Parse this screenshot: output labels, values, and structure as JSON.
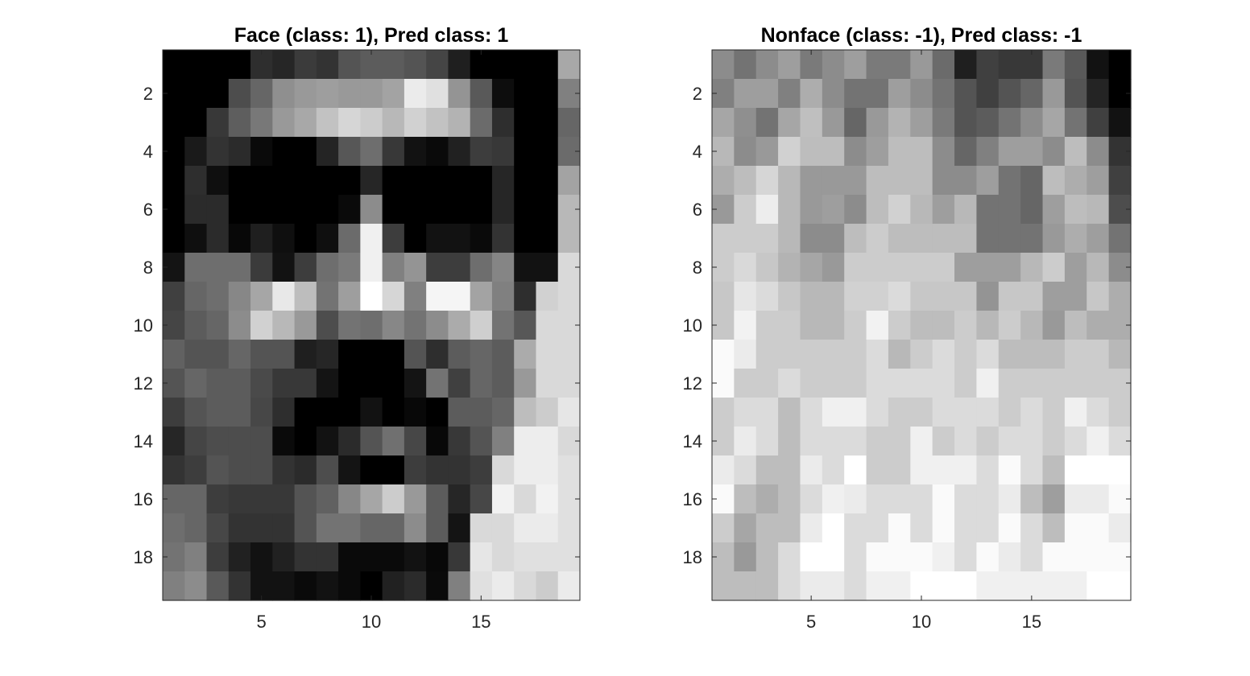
{
  "chart_data": [
    {
      "type": "heatmap",
      "title": "Face (class: 1), Pred class: 1",
      "colormap": "gray",
      "xlim": [
        0.5,
        19.5
      ],
      "ylim": [
        0.5,
        19.5
      ],
      "y_reversed": true,
      "xticks": [
        5,
        10,
        15
      ],
      "yticks": [
        2,
        4,
        6,
        8,
        10,
        12,
        14,
        16,
        18
      ],
      "rows": 19,
      "cols": 19,
      "values": [
        [
          0.0,
          0.0,
          0.0,
          0.0,
          0.18,
          0.15,
          0.23,
          0.2,
          0.33,
          0.36,
          0.36,
          0.33,
          0.27,
          0.12,
          0.0,
          0.0,
          0.0,
          0.0,
          0.66
        ],
        [
          0.0,
          0.0,
          0.0,
          0.3,
          0.4,
          0.56,
          0.6,
          0.62,
          0.6,
          0.6,
          0.64,
          0.92,
          0.88,
          0.58,
          0.35,
          0.05,
          0.0,
          0.0,
          0.5
        ],
        [
          0.0,
          0.0,
          0.22,
          0.37,
          0.47,
          0.6,
          0.66,
          0.76,
          0.84,
          0.8,
          0.72,
          0.82,
          0.76,
          0.7,
          0.42,
          0.18,
          0.0,
          0.0,
          0.4
        ],
        [
          0.0,
          0.1,
          0.2,
          0.17,
          0.04,
          0.0,
          0.0,
          0.14,
          0.34,
          0.43,
          0.22,
          0.07,
          0.04,
          0.13,
          0.24,
          0.22,
          0.0,
          0.0,
          0.42
        ],
        [
          0.0,
          0.18,
          0.06,
          0.0,
          0.0,
          0.0,
          0.0,
          0.0,
          0.0,
          0.15,
          0.0,
          0.0,
          0.0,
          0.0,
          0.0,
          0.15,
          0.0,
          0.0,
          0.64
        ],
        [
          0.0,
          0.17,
          0.17,
          0.0,
          0.0,
          0.0,
          0.0,
          0.0,
          0.04,
          0.55,
          0.0,
          0.0,
          0.0,
          0.0,
          0.0,
          0.15,
          0.0,
          0.0,
          0.72
        ],
        [
          0.0,
          0.06,
          0.17,
          0.03,
          0.12,
          0.06,
          0.0,
          0.06,
          0.42,
          0.94,
          0.24,
          0.0,
          0.07,
          0.07,
          0.04,
          0.2,
          0.0,
          0.0,
          0.72
        ],
        [
          0.08,
          0.43,
          0.43,
          0.43,
          0.23,
          0.07,
          0.24,
          0.43,
          0.48,
          0.94,
          0.5,
          0.58,
          0.24,
          0.24,
          0.43,
          0.52,
          0.07,
          0.07,
          0.85
        ],
        [
          0.25,
          0.4,
          0.43,
          0.53,
          0.65,
          0.91,
          0.74,
          0.45,
          0.62,
          1.0,
          0.84,
          0.5,
          0.96,
          0.96,
          0.64,
          0.5,
          0.18,
          0.82,
          0.85
        ],
        [
          0.27,
          0.36,
          0.4,
          0.55,
          0.82,
          0.72,
          0.6,
          0.3,
          0.45,
          0.43,
          0.53,
          0.45,
          0.55,
          0.67,
          0.81,
          0.45,
          0.34,
          0.85,
          0.85
        ],
        [
          0.38,
          0.33,
          0.33,
          0.4,
          0.33,
          0.33,
          0.12,
          0.15,
          0.0,
          0.0,
          0.0,
          0.33,
          0.18,
          0.36,
          0.4,
          0.36,
          0.67,
          0.85,
          0.85
        ],
        [
          0.33,
          0.4,
          0.36,
          0.36,
          0.29,
          0.22,
          0.22,
          0.08,
          0.0,
          0.0,
          0.0,
          0.08,
          0.45,
          0.25,
          0.4,
          0.36,
          0.6,
          0.85,
          0.85
        ],
        [
          0.24,
          0.33,
          0.36,
          0.36,
          0.28,
          0.18,
          0.0,
          0.0,
          0.0,
          0.07,
          0.0,
          0.03,
          0.0,
          0.36,
          0.36,
          0.4,
          0.74,
          0.8,
          0.9
        ],
        [
          0.15,
          0.27,
          0.3,
          0.3,
          0.3,
          0.04,
          0.0,
          0.07,
          0.17,
          0.33,
          0.44,
          0.28,
          0.03,
          0.22,
          0.33,
          0.5,
          0.93,
          0.93,
          0.85
        ],
        [
          0.2,
          0.24,
          0.33,
          0.3,
          0.3,
          0.2,
          0.17,
          0.3,
          0.08,
          0.0,
          0.0,
          0.24,
          0.2,
          0.2,
          0.24,
          0.85,
          0.93,
          0.93,
          0.88
        ],
        [
          0.4,
          0.4,
          0.24,
          0.22,
          0.22,
          0.22,
          0.33,
          0.38,
          0.53,
          0.65,
          0.8,
          0.6,
          0.36,
          0.15,
          0.28,
          0.95,
          0.85,
          0.95,
          0.88
        ],
        [
          0.43,
          0.4,
          0.28,
          0.2,
          0.2,
          0.2,
          0.33,
          0.45,
          0.45,
          0.4,
          0.4,
          0.55,
          0.36,
          0.08,
          0.85,
          0.85,
          0.92,
          0.92,
          0.88
        ],
        [
          0.45,
          0.5,
          0.24,
          0.13,
          0.07,
          0.13,
          0.2,
          0.2,
          0.04,
          0.04,
          0.04,
          0.07,
          0.03,
          0.22,
          0.9,
          0.85,
          0.88,
          0.88,
          0.88
        ],
        [
          0.5,
          0.55,
          0.35,
          0.2,
          0.07,
          0.07,
          0.04,
          0.07,
          0.04,
          0.0,
          0.13,
          0.17,
          0.04,
          0.5,
          0.88,
          0.92,
          0.85,
          0.8,
          0.92
        ]
      ]
    },
    {
      "type": "heatmap",
      "title": "Nonface (class: -1), Pred class: -1",
      "colormap": "gray",
      "xlim": [
        0.5,
        19.5
      ],
      "ylim": [
        0.5,
        19.5
      ],
      "y_reversed": true,
      "xticks": [
        5,
        10,
        15
      ],
      "yticks": [
        2,
        4,
        6,
        8,
        10,
        12,
        14,
        16,
        18
      ],
      "rows": 19,
      "cols": 19,
      "values": [
        [
          0.55,
          0.45,
          0.55,
          0.62,
          0.48,
          0.55,
          0.62,
          0.48,
          0.48,
          0.6,
          0.42,
          0.12,
          0.25,
          0.22,
          0.22,
          0.48,
          0.35,
          0.07,
          0.0
        ],
        [
          0.5,
          0.62,
          0.62,
          0.5,
          0.68,
          0.55,
          0.45,
          0.45,
          0.62,
          0.55,
          0.45,
          0.33,
          0.25,
          0.33,
          0.4,
          0.6,
          0.33,
          0.14,
          0.0
        ],
        [
          0.65,
          0.56,
          0.45,
          0.65,
          0.75,
          0.6,
          0.4,
          0.6,
          0.7,
          0.62,
          0.48,
          0.33,
          0.36,
          0.45,
          0.55,
          0.65,
          0.45,
          0.25,
          0.07
        ],
        [
          0.72,
          0.55,
          0.6,
          0.82,
          0.74,
          0.74,
          0.55,
          0.62,
          0.74,
          0.74,
          0.55,
          0.4,
          0.5,
          0.62,
          0.62,
          0.55,
          0.74,
          0.55,
          0.2
        ],
        [
          0.68,
          0.74,
          0.84,
          0.72,
          0.6,
          0.6,
          0.6,
          0.74,
          0.74,
          0.74,
          0.55,
          0.55,
          0.62,
          0.45,
          0.4,
          0.74,
          0.68,
          0.62,
          0.25
        ],
        [
          0.6,
          0.8,
          0.93,
          0.72,
          0.6,
          0.62,
          0.55,
          0.74,
          0.82,
          0.72,
          0.62,
          0.72,
          0.45,
          0.45,
          0.4,
          0.62,
          0.74,
          0.72,
          0.3
        ],
        [
          0.8,
          0.8,
          0.8,
          0.72,
          0.55,
          0.55,
          0.74,
          0.8,
          0.74,
          0.74,
          0.74,
          0.74,
          0.45,
          0.45,
          0.45,
          0.6,
          0.68,
          0.62,
          0.45
        ],
        [
          0.8,
          0.85,
          0.78,
          0.7,
          0.65,
          0.6,
          0.8,
          0.8,
          0.8,
          0.8,
          0.8,
          0.62,
          0.62,
          0.62,
          0.72,
          0.8,
          0.62,
          0.72,
          0.55
        ],
        [
          0.78,
          0.9,
          0.86,
          0.78,
          0.72,
          0.72,
          0.82,
          0.82,
          0.86,
          0.78,
          0.78,
          0.78,
          0.58,
          0.78,
          0.78,
          0.62,
          0.62,
          0.78,
          0.68
        ],
        [
          0.78,
          0.95,
          0.8,
          0.8,
          0.72,
          0.72,
          0.8,
          0.95,
          0.8,
          0.74,
          0.74,
          0.8,
          0.72,
          0.8,
          0.72,
          0.6,
          0.74,
          0.68,
          0.68
        ],
        [
          0.98,
          0.92,
          0.8,
          0.8,
          0.8,
          0.8,
          0.8,
          0.86,
          0.72,
          0.8,
          0.86,
          0.8,
          0.86,
          0.74,
          0.74,
          0.74,
          0.8,
          0.8,
          0.72
        ],
        [
          0.98,
          0.8,
          0.8,
          0.86,
          0.8,
          0.8,
          0.8,
          0.86,
          0.86,
          0.86,
          0.86,
          0.8,
          0.94,
          0.8,
          0.8,
          0.8,
          0.8,
          0.8,
          0.8
        ],
        [
          0.8,
          0.86,
          0.86,
          0.74,
          0.86,
          0.94,
          0.94,
          0.86,
          0.8,
          0.8,
          0.86,
          0.86,
          0.86,
          0.8,
          0.86,
          0.8,
          0.94,
          0.86,
          0.8
        ],
        [
          0.8,
          0.92,
          0.86,
          0.74,
          0.86,
          0.86,
          0.86,
          0.8,
          0.8,
          0.94,
          0.8,
          0.86,
          0.8,
          0.86,
          0.86,
          0.8,
          0.86,
          0.94,
          0.86
        ],
        [
          0.92,
          0.86,
          0.74,
          0.74,
          0.92,
          0.86,
          1.0,
          0.8,
          0.8,
          0.94,
          0.94,
          0.94,
          0.86,
          0.98,
          0.86,
          0.74,
          1.0,
          1.0,
          1.0
        ],
        [
          0.98,
          0.74,
          0.68,
          0.74,
          0.86,
          0.94,
          0.92,
          0.86,
          0.86,
          0.86,
          0.98,
          0.86,
          0.86,
          0.92,
          0.74,
          0.62,
          0.92,
          0.92,
          0.98
        ],
        [
          0.8,
          0.65,
          0.74,
          0.74,
          0.92,
          1.0,
          0.86,
          0.86,
          0.98,
          0.86,
          0.98,
          0.86,
          0.86,
          0.98,
          0.86,
          0.74,
          0.98,
          0.98,
          0.92
        ],
        [
          0.74,
          0.6,
          0.74,
          0.86,
          1.0,
          1.0,
          0.86,
          0.98,
          0.98,
          0.98,
          0.94,
          0.86,
          0.98,
          0.92,
          0.86,
          0.98,
          0.98,
          0.98,
          0.98
        ],
        [
          0.74,
          0.74,
          0.74,
          0.86,
          0.92,
          0.92,
          0.86,
          0.94,
          0.94,
          1.0,
          1.0,
          1.0,
          0.94,
          0.94,
          0.94,
          0.94,
          0.94,
          1.0,
          1.0
        ]
      ]
    }
  ]
}
